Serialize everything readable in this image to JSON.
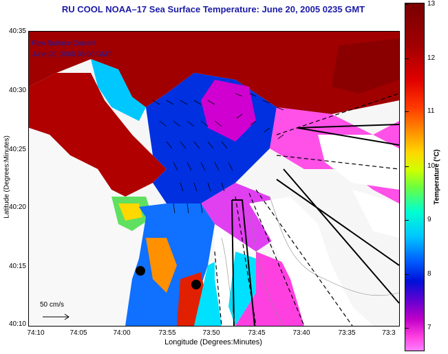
{
  "title": "RU COOL  NOAA–17  Sea Surface Temperature:  June 20, 2005 0235 GMT",
  "legend": {
    "line1": "Raw Surface Current",
    "line2": "June 20, 2005 05:00 GMT"
  },
  "scale_label": "50 cm/s",
  "y_axis": {
    "label": "Latitude (Degrees:Minutes)",
    "ticks": [
      "40:35",
      "40:30",
      "40:25",
      "40:20",
      "40:15",
      "40:10"
    ]
  },
  "x_axis": {
    "label": "Longitude (Degrees:Minutes)",
    "ticks": [
      "74:10",
      "74:05",
      "74:00",
      "73:55",
      "73:50",
      "73:45",
      "73:40",
      "73:35",
      "73:3"
    ]
  },
  "colorbar": {
    "label": "Temperature (°C)",
    "ticks": [
      "13",
      "12",
      "11",
      "10",
      "9",
      "8",
      "7"
    ]
  },
  "colors": {
    "title": "#1a1aa6",
    "land": "#a00000",
    "coast_warm": "#ff3a00",
    "mid": "#00c8ff",
    "cold": "#ff40e0"
  }
}
